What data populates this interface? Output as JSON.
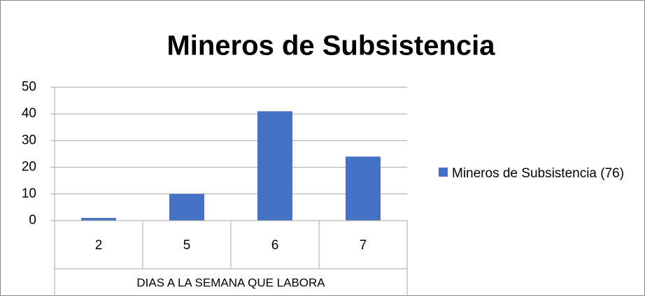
{
  "chart_data": {
    "type": "bar",
    "title": "Mineros de Subsistencia",
    "xlabel": "DIAS A LA SEMANA QUE LABORA",
    "categories": [
      "2",
      "5",
      "6",
      "7"
    ],
    "series": [
      {
        "name": "Mineros de Subsistencia (76)",
        "color": "#4472c4",
        "values": [
          1,
          10,
          41,
          24
        ]
      }
    ],
    "ylim": [
      0,
      50
    ],
    "yticks": [
      0,
      10,
      20,
      30,
      40,
      50
    ],
    "grid": true,
    "legend": "right"
  }
}
